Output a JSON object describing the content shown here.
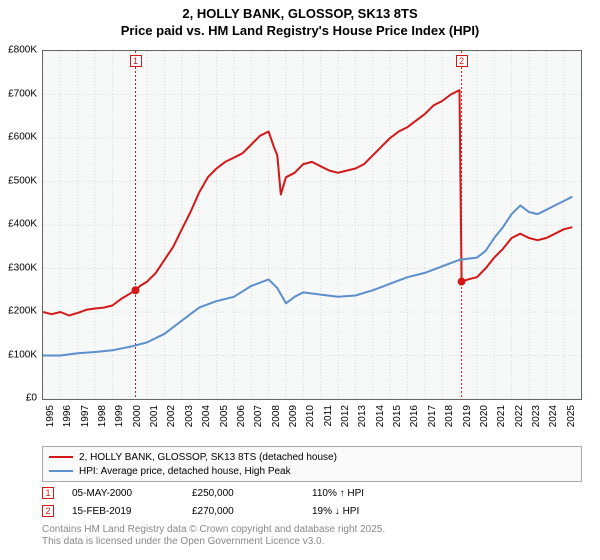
{
  "title_line1": "2, HOLLY BANK, GLOSSOP, SK13 8TS",
  "title_line2": "Price paid vs. HM Land Registry's House Price Index (HPI)",
  "chart": {
    "type": "line",
    "background_color": "#f7f8f8",
    "grid_color": "#d7dbdb",
    "border_color": "#666666",
    "xlim": [
      1995,
      2026
    ],
    "ylim": [
      0,
      800000
    ],
    "ytick_step": 100000,
    "yticks": [
      {
        "v": 0,
        "label": "£0"
      },
      {
        "v": 100000,
        "label": "£100K"
      },
      {
        "v": 200000,
        "label": "£200K"
      },
      {
        "v": 300000,
        "label": "£300K"
      },
      {
        "v": 400000,
        "label": "£400K"
      },
      {
        "v": 500000,
        "label": "£500K"
      },
      {
        "v": 600000,
        "label": "£600K"
      },
      {
        "v": 700000,
        "label": "£700K"
      },
      {
        "v": 800000,
        "label": "£800K"
      }
    ],
    "xticks": [
      1995,
      1996,
      1997,
      1998,
      1999,
      2000,
      2001,
      2002,
      2003,
      2004,
      2005,
      2006,
      2007,
      2008,
      2009,
      2010,
      2011,
      2012,
      2013,
      2014,
      2015,
      2016,
      2017,
      2018,
      2019,
      2020,
      2021,
      2022,
      2023,
      2024,
      2025
    ],
    "series": [
      {
        "id": "price_paid",
        "color": "#d41818",
        "label": "2, HOLLY BANK, GLOSSOP, SK13 8TS (detached house)",
        "line_width": 2,
        "data": [
          [
            1995.0,
            200000
          ],
          [
            1995.5,
            195000
          ],
          [
            1996.0,
            200000
          ],
          [
            1996.5,
            192000
          ],
          [
            1997.0,
            198000
          ],
          [
            1997.5,
            205000
          ],
          [
            1998.0,
            208000
          ],
          [
            1998.5,
            210000
          ],
          [
            1999.0,
            215000
          ],
          [
            1999.5,
            230000
          ],
          [
            2000.33,
            250000
          ],
          [
            2000.6,
            260000
          ],
          [
            2001.0,
            270000
          ],
          [
            2001.5,
            290000
          ],
          [
            2002.0,
            320000
          ],
          [
            2002.5,
            350000
          ],
          [
            2003.0,
            390000
          ],
          [
            2003.5,
            430000
          ],
          [
            2004.0,
            475000
          ],
          [
            2004.5,
            510000
          ],
          [
            2005.0,
            530000
          ],
          [
            2005.5,
            545000
          ],
          [
            2006.0,
            555000
          ],
          [
            2006.5,
            565000
          ],
          [
            2007.0,
            585000
          ],
          [
            2007.5,
            605000
          ],
          [
            2008.0,
            615000
          ],
          [
            2008.3,
            580000
          ],
          [
            2008.5,
            560000
          ],
          [
            2008.7,
            470000
          ],
          [
            2009.0,
            510000
          ],
          [
            2009.5,
            520000
          ],
          [
            2010.0,
            540000
          ],
          [
            2010.5,
            545000
          ],
          [
            2011.0,
            535000
          ],
          [
            2011.5,
            525000
          ],
          [
            2012.0,
            520000
          ],
          [
            2012.5,
            525000
          ],
          [
            2013.0,
            530000
          ],
          [
            2013.5,
            540000
          ],
          [
            2014.0,
            560000
          ],
          [
            2014.5,
            580000
          ],
          [
            2015.0,
            600000
          ],
          [
            2015.5,
            615000
          ],
          [
            2016.0,
            625000
          ],
          [
            2016.5,
            640000
          ],
          [
            2017.0,
            655000
          ],
          [
            2017.5,
            675000
          ],
          [
            2018.0,
            685000
          ],
          [
            2018.5,
            700000
          ],
          [
            2019.0,
            710000
          ],
          [
            2019.12,
            270000
          ],
          [
            2019.5,
            275000
          ],
          [
            2020.0,
            280000
          ],
          [
            2020.5,
            300000
          ],
          [
            2021.0,
            325000
          ],
          [
            2021.5,
            345000
          ],
          [
            2022.0,
            370000
          ],
          [
            2022.5,
            380000
          ],
          [
            2023.0,
            370000
          ],
          [
            2023.5,
            365000
          ],
          [
            2024.0,
            370000
          ],
          [
            2024.5,
            380000
          ],
          [
            2025.0,
            390000
          ],
          [
            2025.5,
            395000
          ]
        ]
      },
      {
        "id": "hpi",
        "color": "#5b8fce",
        "label": "HPI: Average price, detached house, High Peak",
        "line_width": 2,
        "data": [
          [
            1995.0,
            100000
          ],
          [
            1996.0,
            100000
          ],
          [
            1997.0,
            105000
          ],
          [
            1998.0,
            108000
          ],
          [
            1999.0,
            112000
          ],
          [
            2000.0,
            120000
          ],
          [
            2001.0,
            130000
          ],
          [
            2002.0,
            150000
          ],
          [
            2003.0,
            180000
          ],
          [
            2004.0,
            210000
          ],
          [
            2005.0,
            225000
          ],
          [
            2006.0,
            235000
          ],
          [
            2007.0,
            260000
          ],
          [
            2008.0,
            275000
          ],
          [
            2008.5,
            255000
          ],
          [
            2009.0,
            220000
          ],
          [
            2009.5,
            235000
          ],
          [
            2010.0,
            245000
          ],
          [
            2011.0,
            240000
          ],
          [
            2012.0,
            235000
          ],
          [
            2013.0,
            238000
          ],
          [
            2014.0,
            250000
          ],
          [
            2015.0,
            265000
          ],
          [
            2016.0,
            280000
          ],
          [
            2017.0,
            290000
          ],
          [
            2018.0,
            305000
          ],
          [
            2019.0,
            320000
          ],
          [
            2020.0,
            325000
          ],
          [
            2020.5,
            340000
          ],
          [
            2021.0,
            370000
          ],
          [
            2021.5,
            395000
          ],
          [
            2022.0,
            425000
          ],
          [
            2022.5,
            445000
          ],
          [
            2023.0,
            430000
          ],
          [
            2023.5,
            425000
          ],
          [
            2024.0,
            435000
          ],
          [
            2024.5,
            445000
          ],
          [
            2025.0,
            455000
          ],
          [
            2025.5,
            465000
          ]
        ]
      }
    ],
    "sale_markers": [
      {
        "n": 1,
        "x": 2000.33,
        "y": 250000,
        "color": "#d41818",
        "date": "05-MAY-2000",
        "price": "£250,000",
        "delta": "110% ↑ HPI"
      },
      {
        "n": 2,
        "x": 2019.12,
        "y": 270000,
        "color": "#d41818",
        "date": "15-FEB-2019",
        "price": "£270,000",
        "delta": "19% ↓ HPI"
      }
    ]
  },
  "footer_line1": "Contains HM Land Registry data © Crown copyright and database right 2025.",
  "footer_line2": "This data is licensed under the Open Government Licence v3.0."
}
